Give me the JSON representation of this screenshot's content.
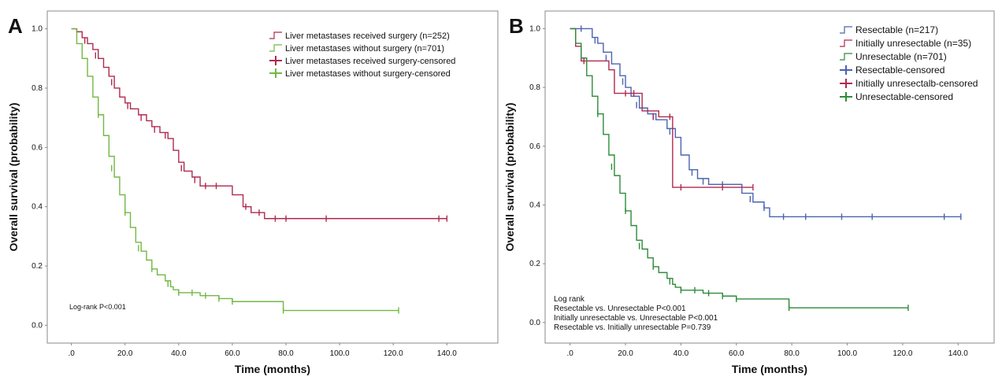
{
  "chart_data": [
    {
      "type": "km",
      "panel_label": "A",
      "xlabel": "Time (months)",
      "ylabel": "Overall survival (probability)",
      "xlim": [
        -9,
        159
      ],
      "ylim": [
        -0.06,
        1.06
      ],
      "xticks": [
        {
          "value": 0,
          "label": ".0"
        },
        {
          "value": 20,
          "label": "20.0"
        },
        {
          "value": 40,
          "label": "40.0"
        },
        {
          "value": 60,
          "label": "60.0"
        },
        {
          "value": 80,
          "label": "80.0"
        },
        {
          "value": 100,
          "label": "100.0"
        },
        {
          "value": 120,
          "label": "120.0"
        },
        {
          "value": 140,
          "label": "140.0"
        }
      ],
      "yticks": [
        {
          "value": 0,
          "label": "0.0"
        },
        {
          "value": 0.2,
          "label": "0.2"
        },
        {
          "value": 0.4,
          "label": "0.4"
        },
        {
          "value": 0.6,
          "label": "0.6"
        },
        {
          "value": 0.8,
          "label": "0.8"
        },
        {
          "value": 1,
          "label": "1.0"
        }
      ],
      "annotation": [
        "Log-rank P<0.001"
      ],
      "series": [
        {
          "name": "Liver metastases received surgery (n=252)",
          "color": "#b0294f",
          "line": "step",
          "x": [
            0,
            2,
            4,
            6,
            8,
            10,
            12,
            14,
            16,
            18,
            20,
            22,
            25,
            28,
            30,
            33,
            36,
            38,
            40,
            42,
            45,
            48,
            58,
            60,
            64,
            67,
            72,
            140
          ],
          "values": [
            1.0,
            0.99,
            0.97,
            0.95,
            0.93,
            0.9,
            0.87,
            0.84,
            0.8,
            0.77,
            0.75,
            0.73,
            0.71,
            0.69,
            0.67,
            0.65,
            0.63,
            0.59,
            0.55,
            0.52,
            0.5,
            0.47,
            0.47,
            0.44,
            0.4,
            0.38,
            0.36,
            0.36
          ]
        },
        {
          "name": "Liver metastases without surgery (n=701)",
          "color": "#72b843",
          "line": "step",
          "x": [
            0,
            2,
            4,
            6,
            8,
            10,
            12,
            14,
            16,
            18,
            20,
            22,
            24,
            26,
            28,
            30,
            32,
            35,
            37,
            38,
            40,
            45,
            48,
            55,
            60,
            79,
            122
          ],
          "values": [
            1.0,
            0.95,
            0.9,
            0.84,
            0.77,
            0.71,
            0.64,
            0.57,
            0.5,
            0.44,
            0.38,
            0.33,
            0.28,
            0.25,
            0.22,
            0.19,
            0.17,
            0.15,
            0.13,
            0.12,
            0.11,
            0.11,
            0.1,
            0.09,
            0.08,
            0.05,
            0.05
          ]
        },
        {
          "name": "Liver metastases received surgery-censored",
          "color": "#b0294f",
          "marker": "+",
          "x": [
            5,
            9,
            15,
            21,
            26,
            31,
            35,
            41,
            46,
            50,
            54,
            65,
            70,
            76,
            80,
            95,
            137,
            140
          ],
          "values": [
            0.96,
            0.91,
            0.82,
            0.74,
            0.7,
            0.66,
            0.64,
            0.53,
            0.49,
            0.47,
            0.47,
            0.4,
            0.38,
            0.36,
            0.36,
            0.36,
            0.36,
            0.36
          ]
        },
        {
          "name": "Liver metastases without surgery-censored",
          "color": "#72b843",
          "marker": "+",
          "x": [
            10,
            15,
            20,
            25,
            30,
            36,
            40,
            45,
            50,
            55,
            60,
            79,
            122
          ],
          "values": [
            0.71,
            0.53,
            0.38,
            0.26,
            0.19,
            0.14,
            0.11,
            0.11,
            0.1,
            0.09,
            0.08,
            0.05,
            0.05
          ]
        }
      ]
    },
    {
      "type": "km",
      "panel_label": "B",
      "xlabel": "Time (months)",
      "ylabel": "Overall survival (probability)",
      "xlim": [
        -9,
        153
      ],
      "ylim": [
        -0.07,
        1.06
      ],
      "xticks": [
        {
          "value": 0,
          "label": ".0"
        },
        {
          "value": 20,
          "label": "20.0"
        },
        {
          "value": 40,
          "label": "40.0"
        },
        {
          "value": 60,
          "label": "60.0"
        },
        {
          "value": 80,
          "label": "80.0"
        },
        {
          "value": 100,
          "label": "100.0"
        },
        {
          "value": 120,
          "label": "120.0"
        },
        {
          "value": 140,
          "label": "140.0"
        }
      ],
      "yticks": [
        {
          "value": 0,
          "label": "0.0"
        },
        {
          "value": 0.2,
          "label": "0.2"
        },
        {
          "value": 0.4,
          "label": "0.4"
        },
        {
          "value": 0.6,
          "label": "0.6"
        },
        {
          "value": 0.8,
          "label": "0.8"
        },
        {
          "value": 1,
          "label": "1.0"
        }
      ],
      "annotation": [
        "Log rank",
        "Resectable vs. Unresectable  P<0.001",
        "Initially unresectable vs. Unresectable P<0.001",
        " Resectable  vs.  Initially unresectable P=0.739"
      ],
      "series": [
        {
          "name": "Resectable (n=217)",
          "color": "#4a63b0",
          "line": "step",
          "x": [
            0,
            6,
            8,
            10,
            12,
            15,
            18,
            20,
            22,
            25,
            28,
            31,
            35,
            38,
            40,
            43,
            46,
            50,
            60,
            62,
            66,
            70,
            72,
            141
          ],
          "values": [
            1.0,
            1.0,
            0.97,
            0.95,
            0.92,
            0.88,
            0.84,
            0.8,
            0.77,
            0.73,
            0.71,
            0.69,
            0.66,
            0.63,
            0.57,
            0.52,
            0.49,
            0.47,
            0.47,
            0.44,
            0.41,
            0.39,
            0.36,
            0.36
          ]
        },
        {
          "name": "Initially unresectable (n=35)",
          "color": "#b0294f",
          "line": "step",
          "x": [
            0,
            2,
            4,
            14,
            16,
            26,
            32,
            37,
            66
          ],
          "values": [
            1.0,
            0.94,
            0.89,
            0.86,
            0.78,
            0.72,
            0.7,
            0.46,
            0.46
          ]
        },
        {
          "name": "Unresectable (n=701)",
          "color": "#2e8b3a",
          "line": "step",
          "x": [
            0,
            2,
            4,
            6,
            8,
            10,
            12,
            14,
            16,
            18,
            20,
            22,
            24,
            26,
            28,
            30,
            32,
            35,
            37,
            38,
            40,
            45,
            48,
            55,
            60,
            79,
            122
          ],
          "values": [
            1.0,
            0.95,
            0.9,
            0.84,
            0.77,
            0.71,
            0.64,
            0.57,
            0.5,
            0.44,
            0.38,
            0.33,
            0.28,
            0.25,
            0.22,
            0.19,
            0.17,
            0.15,
            0.13,
            0.12,
            0.11,
            0.11,
            0.1,
            0.09,
            0.08,
            0.05,
            0.05
          ]
        },
        {
          "name": "Resectable-censored",
          "color": "#4a63b0",
          "marker": "+",
          "x": [
            4,
            9,
            13,
            19,
            24,
            30,
            36,
            44,
            48,
            55,
            65,
            70,
            77,
            85,
            98,
            109,
            135,
            141
          ],
          "values": [
            1.0,
            0.96,
            0.9,
            0.82,
            0.74,
            0.7,
            0.65,
            0.51,
            0.48,
            0.47,
            0.42,
            0.39,
            0.36,
            0.36,
            0.36,
            0.36,
            0.36,
            0.36
          ]
        },
        {
          "name": "Initially unresectalb-censored",
          "color": "#b0294f",
          "marker": "+",
          "x": [
            5,
            20,
            23,
            30,
            36,
            40,
            55,
            66
          ],
          "values": [
            0.89,
            0.78,
            0.78,
            0.7,
            0.7,
            0.46,
            0.46,
            0.46
          ]
        },
        {
          "name": "Unresectable-censored",
          "color": "#2e8b3a",
          "marker": "+",
          "x": [
            10,
            15,
            20,
            25,
            30,
            36,
            40,
            45,
            50,
            55,
            60,
            79,
            122
          ],
          "values": [
            0.71,
            0.53,
            0.38,
            0.26,
            0.19,
            0.14,
            0.11,
            0.11,
            0.1,
            0.09,
            0.08,
            0.05,
            0.05
          ]
        }
      ]
    }
  ]
}
